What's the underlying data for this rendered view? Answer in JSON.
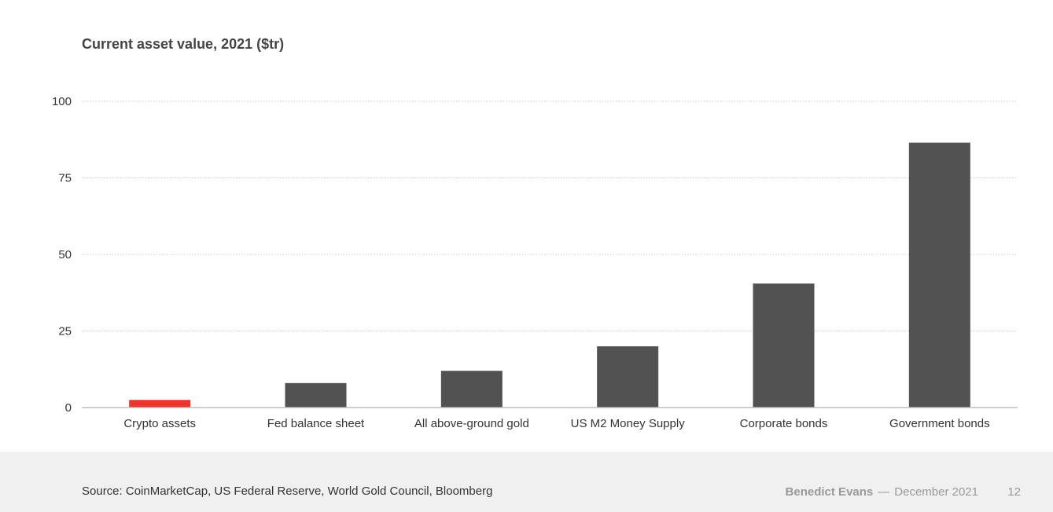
{
  "chart_data": {
    "type": "bar",
    "title": "Current asset value, 2021 ($tr)",
    "xlabel": "",
    "ylabel": "",
    "ylim": [
      0,
      100
    ],
    "yticks": [
      0,
      25,
      50,
      75,
      100
    ],
    "grid": true,
    "categories": [
      "Crypto assets",
      "Fed balance sheet",
      "All above-ground gold",
      "US M2 Money Supply",
      "Corporate bonds",
      "Government bonds"
    ],
    "values": [
      2.5,
      8,
      12,
      20,
      40.5,
      86.5
    ],
    "bar_colors": [
      "#e8372c",
      "#525252",
      "#525252",
      "#525252",
      "#525252",
      "#525252"
    ]
  },
  "footer": {
    "source": "Source: CoinMarketCap, US Federal Reserve, World Gold Council, Bloomberg",
    "author": "Benedict Evans",
    "dash": "—",
    "date": "December 2021",
    "page_number": "12"
  }
}
